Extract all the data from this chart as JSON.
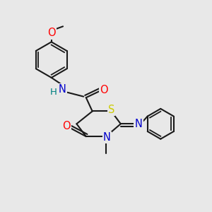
{
  "bg_color": "#e8e8e8",
  "bond_color": "#1a1a1a",
  "atom_colors": {
    "O": "#ff0000",
    "N": "#0000cc",
    "S": "#cccc00",
    "H": "#008080",
    "C": "#1a1a1a"
  },
  "font_size": 9.5
}
